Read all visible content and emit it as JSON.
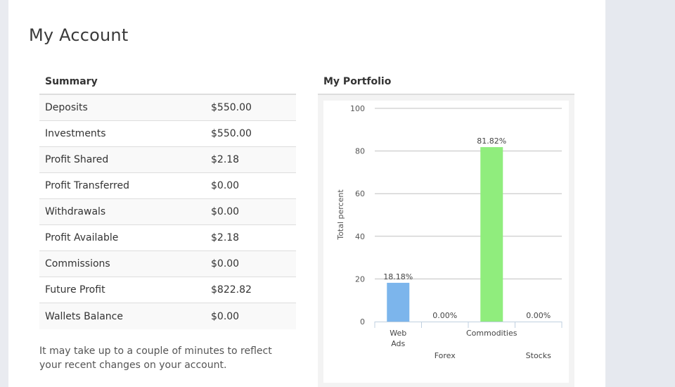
{
  "page": {
    "title": "My Account"
  },
  "summary": {
    "heading": "Summary",
    "rows": [
      {
        "label": "Deposits",
        "value": "$550.00"
      },
      {
        "label": "Investments",
        "value": "$550.00"
      },
      {
        "label": "Profit Shared",
        "value": "$2.18"
      },
      {
        "label": "Profit Transferred",
        "value": "$0.00"
      },
      {
        "label": "Withdrawals",
        "value": "$0.00"
      },
      {
        "label": "Profit Available",
        "value": "$2.18"
      },
      {
        "label": "Commissions",
        "value": "$0.00"
      },
      {
        "label": "Future Profit",
        "value": "$822.82"
      },
      {
        "label": "Wallets Balance",
        "value": "$0.00"
      }
    ],
    "note": "It may take up to a couple of minutes to reflect your recent changes on your account."
  },
  "portfolio": {
    "heading": "My Portfolio"
  },
  "chart_data": {
    "type": "bar",
    "categories": [
      "Web Ads",
      "Forex",
      "Commodities",
      "Stocks"
    ],
    "category_label_lines": [
      [
        "Web",
        "Ads"
      ],
      [
        "Forex"
      ],
      [
        "Commodities"
      ],
      [
        "Stocks"
      ]
    ],
    "values": [
      18.18,
      0,
      81.82,
      0
    ],
    "data_labels": [
      "18.18%",
      "0.00%",
      "81.82%",
      "0.00%"
    ],
    "colors": [
      "#7cb5ec",
      "#7cb5ec",
      "#90ed7d",
      "#90ed7d"
    ],
    "ylabel": "Total percent",
    "xlabel": "",
    "ylim": [
      0,
      100
    ],
    "yticks": [
      0,
      20,
      40,
      60,
      80,
      100
    ],
    "grid": true
  }
}
